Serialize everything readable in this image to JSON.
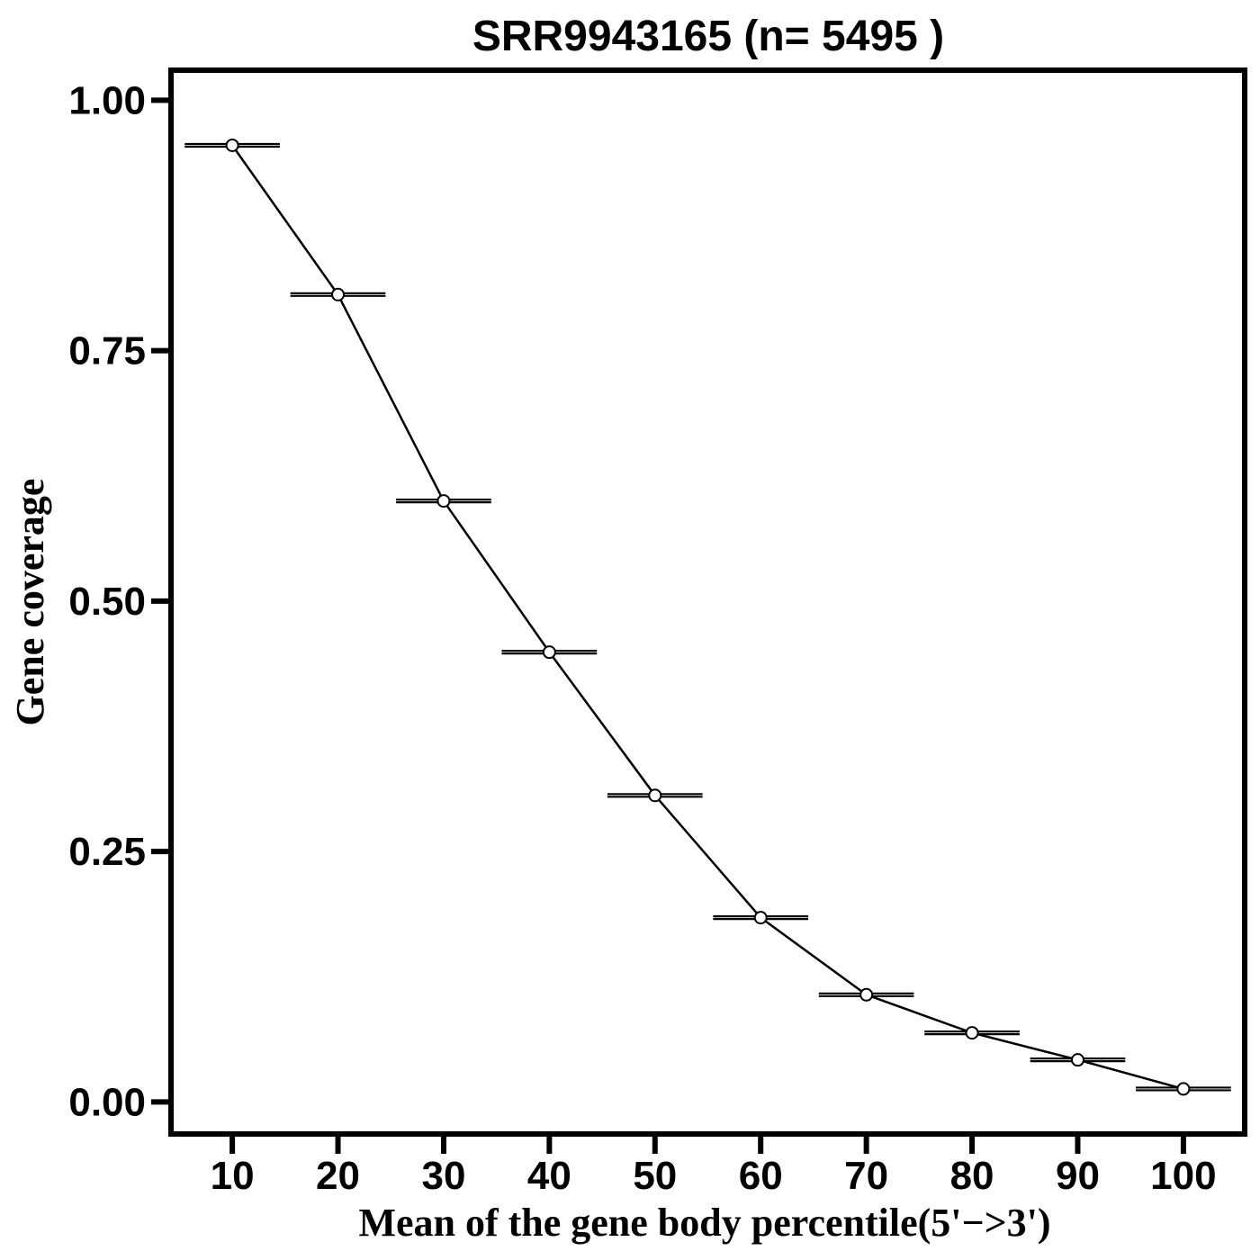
{
  "chart_data": {
    "type": "line",
    "title": "SRR9943165 (n= 5495 )",
    "xlabel": "Mean of the gene body percentile(5'−>3')",
    "ylabel": "Gene coverage",
    "x": [
      10,
      20,
      30,
      40,
      50,
      60,
      70,
      80,
      90,
      100
    ],
    "x_ticks": [
      "10",
      "20",
      "30",
      "40",
      "50",
      "60",
      "70",
      "80",
      "90",
      "100"
    ],
    "y_ticks": [
      "0.00",
      "0.25",
      "0.50",
      "0.75",
      "1.00"
    ],
    "y_tick_values": [
      0,
      0.25,
      0.5,
      0.75,
      1.0
    ],
    "xlim": [
      4.2,
      105.8
    ],
    "ylim": [
      -0.032,
      1.03
    ],
    "series": [
      {
        "values": [
          0.955,
          0.806,
          0.6,
          0.449,
          0.306,
          0.184,
          0.107,
          0.069,
          0.042,
          0.013
        ],
        "error_x_halfwidth": 4.5
      }
    ],
    "grid": false,
    "legend": "none",
    "colors": {
      "line": "#000000",
      "marker_fill": "#ffffff",
      "frame": "#000000"
    }
  }
}
